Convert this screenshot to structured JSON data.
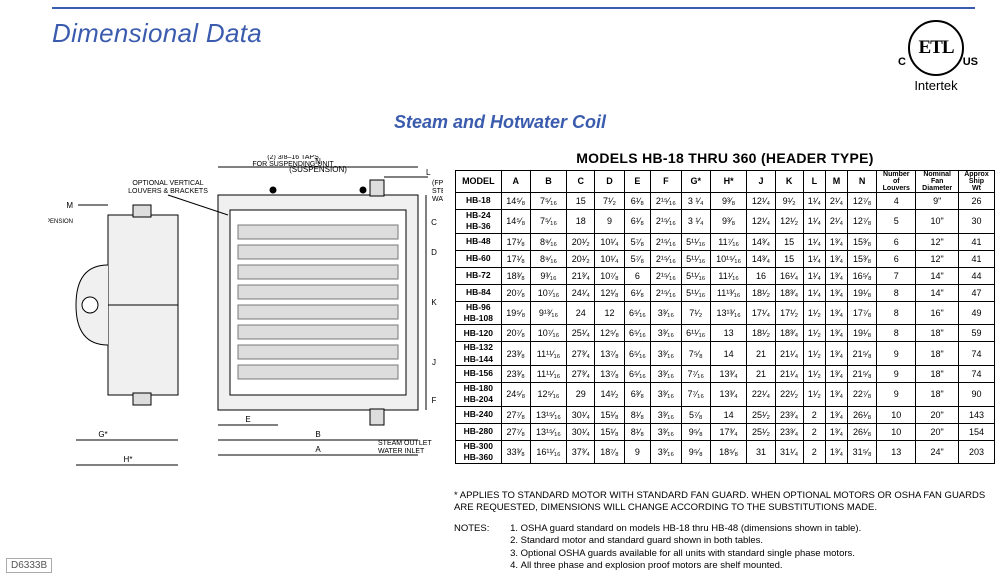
{
  "page_title": "Dimensional Data",
  "cert": {
    "monogram": "ETL",
    "left": "C",
    "right": "US",
    "label": "Intertek"
  },
  "subtitle": "Steam and Hotwater Coil",
  "table_title": "MODELS HB-18 THRU 360 (HEADER TYPE)",
  "doc_number": "D6333B",
  "diagram_labels": {
    "suspension": "SUSPENSION",
    "n_susp": "N\n(SUSPENSION)",
    "taps": "(2) 3/8–16 TAPS\nFOR SUSPENDING UNIT",
    "inlet": "(FPT CONN.)\nSTEAM INLET\nWATER OUTLET",
    "louvers": "OPTIONAL VERTICAL\nLOUVERS & BRACKETS",
    "outlet": "STEAM OUTLET\nWATER INLET",
    "M": "M",
    "C": "C",
    "D": "D",
    "K": "K",
    "J": "J",
    "E": "E",
    "F": "F",
    "A": "A",
    "B": "B",
    "G": "G*",
    "H": "H*",
    "L": "L"
  },
  "columns": [
    "MODEL",
    "A",
    "B",
    "C",
    "D",
    "E",
    "F",
    "G*",
    "H*",
    "J",
    "K",
    "L",
    "M",
    "N",
    "Number of Louvers",
    "Nominal Fan Diameter",
    "Approx Ship Wt"
  ],
  "rows": [
    {
      "model": [
        "HB-18"
      ],
      "vals": [
        "14⁵⁄₈",
        "7⁵⁄₁₆",
        "15",
        "7¹⁄₂",
        "6¹⁄₈",
        "2¹⁵⁄₁₆",
        "3 ¹⁄₄",
        "9³⁄₈",
        "12¹⁄₄",
        "9¹⁄₂",
        "1¹⁄₄",
        "2¹⁄₄",
        "12⁷⁄₈",
        "4",
        "9\"",
        "26"
      ]
    },
    {
      "model": [
        "HB-24",
        "HB-36"
      ],
      "vals": [
        "14⁵⁄₈",
        "7⁵⁄₁₆",
        "18",
        "9",
        "6¹⁄₈",
        "2¹⁵⁄₁₆",
        "3 ¹⁄₄",
        "9³⁄₈",
        "12¹⁄₄",
        "12¹⁄₂",
        "1¹⁄₄",
        "2¹⁄₄",
        "12⁷⁄₈",
        "5",
        "10\"",
        "30"
      ]
    },
    {
      "model": [
        "HB-48"
      ],
      "vals": [
        "17¹⁄₈",
        "8⁹⁄₁₆",
        "20¹⁄₂",
        "10¹⁄₄",
        "5⁷⁄₈",
        "2¹⁵⁄₁₆",
        "5¹¹⁄₁₆",
        "11⁷⁄₁₆",
        "14³⁄₄",
        "15",
        "1¹⁄₄",
        "1³⁄₄",
        "15³⁄₈",
        "6",
        "12\"",
        "41"
      ]
    },
    {
      "model": [
        "HB-60"
      ],
      "vals": [
        "17¹⁄₈",
        "8⁹⁄₁₆",
        "20¹⁄₂",
        "10¹⁄₄",
        "5⁷⁄₈",
        "2¹⁵⁄₁₆",
        "5¹¹⁄₁₆",
        "10¹⁵⁄₁₆",
        "14³⁄₄",
        "15",
        "1¹⁄₄",
        "1³⁄₄",
        "15³⁄₈",
        "6",
        "12\"",
        "41"
      ]
    },
    {
      "model": [
        "HB-72"
      ],
      "vals": [
        "18³⁄₈",
        "9³⁄₁₆",
        "21³⁄₄",
        "10⁷⁄₈",
        "6",
        "2¹⁵⁄₁₆",
        "5¹¹⁄₁₆",
        "11¹⁄₁₆",
        "16",
        "16¹⁄₄",
        "1¹⁄₄",
        "1³⁄₄",
        "16⁵⁄₈",
        "7",
        "14\"",
        "44"
      ]
    },
    {
      "model": [
        "HB-84"
      ],
      "vals": [
        "20⁷⁄₈",
        "10⁷⁄₁₆",
        "24¹⁄₄",
        "12¹⁄₈",
        "6¹⁄₈",
        "2¹⁵⁄₁₆",
        "5¹¹⁄₁₆",
        "11¹³⁄₁₆",
        "18¹⁄₂",
        "18³⁄₄",
        "1¹⁄₄",
        "1³⁄₄",
        "19¹⁄₈",
        "8",
        "14\"",
        "47"
      ]
    },
    {
      "model": [
        "HB-96",
        "HB-108"
      ],
      "vals": [
        "19⁵⁄₈",
        "9¹³⁄₁₆",
        "24",
        "12",
        "6⁵⁄₁₆",
        "3³⁄₁₆",
        "7¹⁄₂",
        "13¹³⁄₁₆",
        "17¹⁄₄",
        "17¹⁄₂",
        "1¹⁄₂",
        "1³⁄₄",
        "17⁷⁄₈",
        "8",
        "16\"",
        "49"
      ]
    },
    {
      "model": [
        "HB-120"
      ],
      "vals": [
        "20⁷⁄₈",
        "10⁷⁄₁₆",
        "25¹⁄₄",
        "12⁵⁄₈",
        "6⁵⁄₁₆",
        "3³⁄₁₆",
        "6¹¹⁄₁₆",
        "13",
        "18¹⁄₂",
        "18³⁄₄",
        "1¹⁄₂",
        "1³⁄₄",
        "19¹⁄₈",
        "8",
        "18\"",
        "59"
      ]
    },
    {
      "model": [
        "HB-132",
        "HB-144"
      ],
      "vals": [
        "23³⁄₈",
        "11¹¹⁄₁₆",
        "27³⁄₄",
        "13⁷⁄₈",
        "6⁵⁄₁₆",
        "3³⁄₁₆",
        "7⁵⁄₈",
        "14",
        "21",
        "21¹⁄₄",
        "1¹⁄₂",
        "1³⁄₄",
        "21⁵⁄₈",
        "9",
        "18\"",
        "74"
      ]
    },
    {
      "model": [
        "HB-156"
      ],
      "vals": [
        "23³⁄₈",
        "11¹¹⁄₁₆",
        "27³⁄₄",
        "13⁷⁄₈",
        "6⁵⁄₁₆",
        "3³⁄₁₆",
        "7⁷⁄₁₆",
        "13³⁄₄",
        "21",
        "21¹⁄₄",
        "1¹⁄₂",
        "1³⁄₄",
        "21⁵⁄₈",
        "9",
        "18\"",
        "74"
      ]
    },
    {
      "model": [
        "HB-180",
        "HB-204"
      ],
      "vals": [
        "24⁵⁄₈",
        "12⁵⁄₁₆",
        "29",
        "14¹⁄₂",
        "6³⁄₈",
        "3³⁄₁₆",
        "7⁷⁄₁₆",
        "13³⁄₄",
        "22¹⁄₄",
        "22¹⁄₂",
        "1¹⁄₂",
        "1³⁄₄",
        "22⁷⁄₈",
        "9",
        "18\"",
        "90"
      ]
    },
    {
      "model": [
        "HB-240"
      ],
      "vals": [
        "27⁷⁄₈",
        "13¹⁵⁄₁₆",
        "30¹⁄₄",
        "15¹⁄₈",
        "8¹⁄₈",
        "3³⁄₁₆",
        "5⁷⁄₈",
        "14",
        "25¹⁄₂",
        "23³⁄₄",
        "2",
        "1³⁄₄",
        "26¹⁄₈",
        "10",
        "20\"",
        "143"
      ]
    },
    {
      "model": [
        "HB-280"
      ],
      "vals": [
        "27⁷⁄₈",
        "13¹⁵⁄₁₆",
        "30¹⁄₄",
        "15¹⁄₈",
        "8¹⁄₈",
        "3³⁄₁₆",
        "9⁵⁄₈",
        "17³⁄₄",
        "25¹⁄₂",
        "23³⁄₄",
        "2",
        "1³⁄₄",
        "26¹⁄₈",
        "10",
        "20\"",
        "154"
      ]
    },
    {
      "model": [
        "HB-300",
        "HB-360"
      ],
      "vals": [
        "33³⁄₈",
        "16¹¹⁄₁₆",
        "37³⁄₄",
        "18⁷⁄₈",
        "9",
        "3³⁄₁₆",
        "9⁵⁄₈",
        "18⁵⁄₈",
        "31",
        "31¹⁄₄",
        "2",
        "1³⁄₄",
        "31⁵⁄₈",
        "13",
        "24\"",
        "203"
      ]
    }
  ],
  "footnote_star": "* APPLIES TO STANDARD MOTOR WITH STANDARD FAN GUARD. WHEN OPTIONAL MOTORS OR OSHA FAN GUARDS ARE REQUESTED, DIMENSIONS WILL CHANGE ACCORDING TO THE SUBSTITUTIONS MADE.",
  "notes_label": "NOTES:",
  "notes": [
    "OSHA guard standard on models HB-18 thru HB-48 (dimensions shown in table).",
    "Standard motor and standard guard shown in both tables.",
    "Optional OSHA guards available for all units with standard single phase motors.",
    "All three phase and explosion proof motors are shelf mounted."
  ],
  "colors": {
    "accent": "#3b5cae",
    "line": "#000000"
  }
}
